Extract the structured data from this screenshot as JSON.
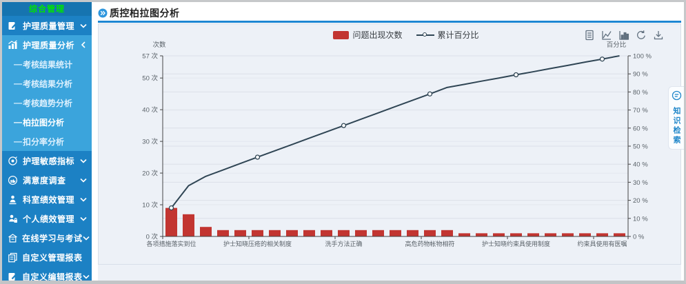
{
  "page": {
    "title": "质控柏拉图分析"
  },
  "sidebar": {
    "header": "综合管理",
    "bullet": "—",
    "items": [
      {
        "label": "护理质量管理",
        "icon": "edit-document-icon",
        "chevron": "down"
      },
      {
        "label": "护理质量分析",
        "icon": "analysis-chart-icon",
        "chevron": "left",
        "expanded": true
      },
      {
        "label": "护理敏感指标",
        "icon": "target-icon",
        "chevron": "down"
      },
      {
        "label": "满意度调查",
        "icon": "thumbs-up-icon",
        "chevron": "down"
      },
      {
        "label": "科室绩效管理",
        "icon": "department-performance-icon",
        "chevron": "down"
      },
      {
        "label": "个人绩效管理",
        "icon": "personal-performance-icon",
        "chevron": "down"
      },
      {
        "label": "在线学习与考试",
        "icon": "online-learning-icon",
        "chevron": "down"
      },
      {
        "label": "自定义管理报表",
        "icon": "report-icon",
        "chevron": "none"
      },
      {
        "label": "自定义编辑报表",
        "icon": "edit-report-icon",
        "chevron": "down"
      }
    ],
    "submenu": [
      {
        "label": "考核结果统计",
        "active": false
      },
      {
        "label": "考核结果分析",
        "active": false
      },
      {
        "label": "考核趋势分析",
        "active": false
      },
      {
        "label": "柏拉图分析",
        "active": true
      },
      {
        "label": "扣分率分析",
        "active": false
      }
    ]
  },
  "side_tab": {
    "label": "知识检索",
    "icon": "knowledge-search-icon"
  },
  "toolbox": {
    "icons": [
      "data-view-icon",
      "line-chart-icon",
      "bar-chart-icon",
      "restore-icon",
      "save-image-icon"
    ]
  },
  "colors": {
    "sidebar_blue": "#1c81c4",
    "sidebar_light_blue": "#3ba4dc",
    "sidebar_header_green": "#00e400",
    "accent_blue": "#1d87d3",
    "panel_bg": "#edf1f7",
    "bar_red": "#c23531",
    "line_slate": "#2f4554"
  },
  "chart_data": {
    "type": "bar+line (pareto)",
    "title": "质控柏拉图分析",
    "total": 57,
    "categories": [
      "各项措施落实到位",
      "",
      "",
      "",
      "",
      "护士知晓压疮的相关制度",
      "",
      "",
      "",
      "",
      "洗手方法正确",
      "",
      "",
      "",
      "",
      "高危药物帐物相符",
      "",
      "",
      "",
      "",
      "护士知晓约束具使用制度",
      "",
      "",
      "",
      "",
      "约束具使用有医嘱",
      ""
    ],
    "bar_series": {
      "name": "问题出现次数",
      "color": "#c23531",
      "values": [
        9,
        7,
        3,
        2,
        2,
        2,
        2,
        2,
        2,
        2,
        2,
        2,
        2,
        2,
        2,
        2,
        2,
        1,
        1,
        1,
        1,
        1,
        1,
        1,
        1,
        1,
        1
      ]
    },
    "line_series": {
      "name": "累计百分比",
      "color": "#2f4554",
      "cumulative_percent": [
        15.8,
        28.1,
        33.3,
        36.8,
        40.4,
        43.9,
        47.4,
        50.9,
        54.4,
        57.9,
        61.4,
        64.9,
        68.4,
        71.9,
        75.4,
        78.9,
        82.5,
        84.2,
        86.0,
        87.7,
        89.5,
        91.2,
        93.0,
        94.7,
        96.5,
        98.2,
        100
      ],
      "marker_indices": [
        0,
        5,
        10,
        15,
        20,
        25
      ]
    },
    "y_left": {
      "name": "次数",
      "max": 57,
      "tick_values": [
        0,
        10,
        20,
        30,
        40,
        50,
        57
      ],
      "tick_labels": [
        "0 次",
        "10 次",
        "20 次",
        "30 次",
        "40 次",
        "50 次",
        "57 次"
      ]
    },
    "y_right": {
      "name": "百分比",
      "max": 100,
      "tick_values": [
        0,
        10,
        20,
        30,
        40,
        50,
        60,
        70,
        80,
        90,
        100
      ],
      "tick_labels": [
        "0 %",
        "10 %",
        "20 %",
        "30 %",
        "40 %",
        "50 %",
        "60 %",
        "70 %",
        "80 %",
        "90 %",
        "100 %"
      ]
    },
    "x_tick_boundaries": [
      0,
      5,
      10,
      15,
      20,
      25,
      27
    ],
    "grid": true,
    "legend_position": "top-center"
  }
}
